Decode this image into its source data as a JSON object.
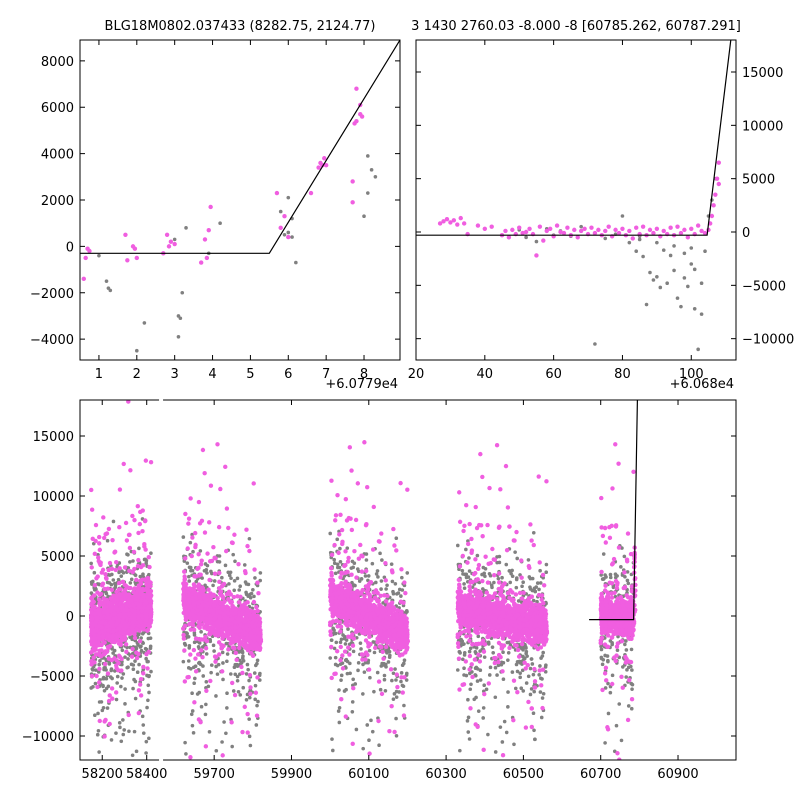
{
  "chart_data": [
    {
      "type": "scatter",
      "title": "BLG18M0802.037433 (8282.75, 2124.77)",
      "x_offset_label": "+6.0779e4",
      "xlim": [
        0.5,
        8.95
      ],
      "ylim": [
        -4900,
        8900
      ],
      "x_ticks": [
        1,
        2,
        3,
        4,
        5,
        6,
        7,
        8
      ],
      "y_ticks": [
        -4000,
        -2000,
        0,
        2000,
        4000,
        6000,
        8000
      ],
      "y_tick_side": "left",
      "model": [
        [
          0.5,
          -300
        ],
        [
          5.5,
          -300
        ],
        [
          8.95,
          8900
        ]
      ],
      "series": [
        {
          "color": "#808080",
          "points": [
            [
              1.0,
              -400
            ],
            [
              1.2,
              -1500
            ],
            [
              1.3,
              -1900
            ],
            [
              1.25,
              -1800
            ],
            [
              2.2,
              -3300
            ],
            [
              2.0,
              -4500
            ],
            [
              3.0,
              300
            ],
            [
              3.1,
              -3000
            ],
            [
              3.15,
              -3100
            ],
            [
              3.1,
              -3900
            ],
            [
              3.2,
              -2000
            ],
            [
              3.3,
              800
            ],
            [
              3.9,
              -300
            ],
            [
              4.2,
              1000
            ],
            [
              5.9,
              500
            ],
            [
              6.1,
              1200
            ],
            [
              6.2,
              -700
            ],
            [
              6.0,
              2100
            ],
            [
              7.7,
              2800
            ],
            [
              8.0,
              1300
            ],
            [
              8.1,
              2300
            ],
            [
              8.1,
              3900
            ],
            [
              8.2,
              3300
            ],
            [
              8.3,
              3000
            ],
            [
              5.8,
              1500
            ],
            [
              6.0,
              600
            ],
            [
              6.1,
              400
            ]
          ]
        },
        {
          "color": "#f05ee0",
          "points": [
            [
              0.6,
              -1400
            ],
            [
              0.65,
              -500
            ],
            [
              0.7,
              -100
            ],
            [
              0.75,
              -200
            ],
            [
              1.7,
              500
            ],
            [
              1.75,
              -600
            ],
            [
              1.9,
              0
            ],
            [
              1.95,
              -100
            ],
            [
              2.0,
              -500
            ],
            [
              2.7,
              -300
            ],
            [
              2.8,
              500
            ],
            [
              2.85,
              0
            ],
            [
              2.9,
              200
            ],
            [
              3.0,
              100
            ],
            [
              3.7,
              -700
            ],
            [
              3.8,
              300
            ],
            [
              3.85,
              -500
            ],
            [
              3.9,
              700
            ],
            [
              3.95,
              1700
            ],
            [
              5.7,
              2300
            ],
            [
              5.8,
              800
            ],
            [
              5.9,
              1300
            ],
            [
              6.0,
              400
            ],
            [
              6.6,
              2300
            ],
            [
              6.8,
              3400
            ],
            [
              6.85,
              3600
            ],
            [
              6.9,
              3500
            ],
            [
              6.95,
              3800
            ],
            [
              7.0,
              3500
            ],
            [
              7.7,
              1900
            ],
            [
              7.7,
              2800
            ],
            [
              7.75,
              5300
            ],
            [
              7.8,
              5400
            ],
            [
              7.8,
              6800
            ],
            [
              7.9,
              5700
            ],
            [
              7.9,
              6100
            ],
            [
              7.95,
              5600
            ]
          ]
        }
      ]
    },
    {
      "type": "scatter",
      "title": "3 1430 2760.03 -8.000 -8 [60785.262, 60787.291]",
      "x_offset_label": "+6.068e4",
      "xlim": [
        20,
        113
      ],
      "ylim": [
        -12000,
        18000
      ],
      "x_ticks": [
        20,
        40,
        60,
        80,
        100
      ],
      "y_ticks": [
        -10000,
        -5000,
        0,
        5000,
        10000,
        15000
      ],
      "y_tick_side": "right",
      "model": [
        [
          20,
          -300
        ],
        [
          104.6,
          -300
        ],
        [
          111.5,
          18000
        ]
      ],
      "series": [
        {
          "color": "#808080",
          "points": [
            [
              50,
              200
            ],
            [
              52,
              -500
            ],
            [
              55,
              -900
            ],
            [
              58,
              300
            ],
            [
              60,
              -300
            ],
            [
              62,
              100
            ],
            [
              65,
              -400
            ],
            [
              68,
              500
            ],
            [
              70,
              -200
            ],
            [
              72,
              -10500
            ],
            [
              75,
              -600
            ],
            [
              78,
              -200
            ],
            [
              80,
              1500
            ],
            [
              82,
              -1000
            ],
            [
              84,
              -1800
            ],
            [
              85,
              -400
            ],
            [
              86,
              -2300
            ],
            [
              87,
              -6800
            ],
            [
              88,
              -3800
            ],
            [
              89,
              -4500
            ],
            [
              90,
              -4200
            ],
            [
              91,
              -5200
            ],
            [
              92,
              -1700
            ],
            [
              93,
              -4800
            ],
            [
              94,
              -2200
            ],
            [
              95,
              -3600
            ],
            [
              96,
              -6200
            ],
            [
              97,
              -7000
            ],
            [
              98,
              -4300
            ],
            [
              99,
              -5100
            ],
            [
              100,
              -3000
            ],
            [
              101,
              -7200
            ],
            [
              102,
              -11000
            ],
            [
              103,
              -4800
            ],
            [
              100,
              -1500
            ],
            [
              98,
              -2000
            ],
            [
              95,
              -1300
            ],
            [
              90,
              -1000
            ],
            [
              85,
              -700
            ],
            [
              105,
              1500
            ],
            [
              106,
              3000
            ],
            [
              107,
              5000
            ],
            [
              104,
              -1800
            ],
            [
              101,
              -3500
            ],
            [
              103,
              -7700
            ]
          ]
        },
        {
          "color": "#f05ee0",
          "points": [
            [
              27,
              800
            ],
            [
              28,
              1000
            ],
            [
              29,
              1200
            ],
            [
              30,
              900
            ],
            [
              31,
              1100
            ],
            [
              32,
              700
            ],
            [
              33,
              1300
            ],
            [
              34,
              800
            ],
            [
              35,
              -200
            ],
            [
              38,
              600
            ],
            [
              40,
              300
            ],
            [
              42,
              500
            ],
            [
              45,
              -300
            ],
            [
              46,
              100
            ],
            [
              47,
              -500
            ],
            [
              48,
              200
            ],
            [
              49,
              -200
            ],
            [
              50,
              400
            ],
            [
              51,
              -100
            ],
            [
              52,
              0
            ],
            [
              53,
              300
            ],
            [
              54,
              -200
            ],
            [
              55,
              -2200
            ],
            [
              56,
              500
            ],
            [
              57,
              -800
            ],
            [
              58,
              100
            ],
            [
              59,
              300
            ],
            [
              60,
              -400
            ],
            [
              61,
              600
            ],
            [
              62,
              0
            ],
            [
              63,
              -100
            ],
            [
              64,
              400
            ],
            [
              65,
              -300
            ],
            [
              66,
              200
            ],
            [
              67,
              -500
            ],
            [
              68,
              100
            ],
            [
              69,
              300
            ],
            [
              70,
              -200
            ],
            [
              71,
              400
            ],
            [
              72,
              -100
            ],
            [
              73,
              200
            ],
            [
              74,
              -300
            ],
            [
              75,
              100
            ],
            [
              76,
              500
            ],
            [
              77,
              -400
            ],
            [
              78,
              200
            ],
            [
              79,
              -100
            ],
            [
              80,
              300
            ],
            [
              81,
              -300
            ],
            [
              82,
              100
            ],
            [
              83,
              -600
            ],
            [
              84,
              400
            ],
            [
              85,
              -200
            ],
            [
              86,
              500
            ],
            [
              87,
              -300
            ],
            [
              88,
              200
            ],
            [
              89,
              -100
            ],
            [
              90,
              300
            ],
            [
              91,
              -400
            ],
            [
              92,
              100
            ],
            [
              93,
              -200
            ],
            [
              94,
              400
            ],
            [
              95,
              -300
            ],
            [
              96,
              500
            ],
            [
              97,
              -100
            ],
            [
              98,
              200
            ],
            [
              99,
              -500
            ],
            [
              100,
              300
            ],
            [
              101,
              -200
            ],
            [
              102,
              600
            ],
            [
              103,
              100
            ],
            [
              104,
              -100
            ],
            [
              105,
              200
            ],
            [
              105.5,
              800
            ],
            [
              106,
              1500
            ],
            [
              106.5,
              2500
            ],
            [
              107,
              3500
            ],
            [
              107.5,
              5000
            ],
            [
              108,
              6500
            ],
            [
              108,
              4500
            ]
          ]
        }
      ]
    },
    {
      "type": "scatter",
      "title": "",
      "xlim": [
        58100,
        61050
      ],
      "ylim": [
        -12000,
        18000
      ],
      "x_axis_breaks": [
        {
          "display_min": 58100,
          "display_max": 58460,
          "data_min": 58100,
          "data_max": 58460
        },
        {
          "display_min": 58460,
          "display_max": 61050,
          "data_min": 59560,
          "data_max": 61050
        }
      ],
      "x_ticks": [
        58200,
        58400,
        59700,
        59900,
        60100,
        60300,
        60500,
        60700,
        60900
      ],
      "y_ticks": [
        -10000,
        -5000,
        0,
        5000,
        10000,
        15000
      ],
      "y_tick_side": "left",
      "model": [
        [
          60670,
          -300
        ],
        [
          60785,
          -300
        ],
        [
          60795,
          18000
        ]
      ],
      "seasons": [
        {
          "x_range": [
            58150,
            58420
          ],
          "trend": [
            -1000,
            800
          ]
        },
        {
          "x_range": [
            59620,
            59820
          ],
          "trend": [
            1200,
            -1500
          ]
        },
        {
          "x_range": [
            60000,
            60200
          ],
          "trend": [
            1500,
            -1500
          ]
        },
        {
          "x_range": [
            60330,
            60560
          ],
          "trend": [
            500,
            -800
          ]
        },
        {
          "x_range": [
            60700,
            60785
          ],
          "trend": [
            0,
            0
          ]
        }
      ],
      "series": [
        {
          "name": "",
          "color": "#808080"
        },
        {
          "name": "",
          "color": "#f05ee0"
        }
      ]
    }
  ]
}
